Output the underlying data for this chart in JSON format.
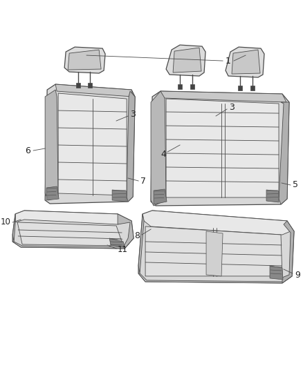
{
  "bg_color": "#ffffff",
  "line_color": "#4a4a4a",
  "figsize": [
    4.38,
    5.33
  ],
  "dpi": 100,
  "seat_fill": "#e8e8e8",
  "seat_edge": "#d0d0d0",
  "seat_dark": "#c8c8c8",
  "seat_mid": "#d8d8d8",
  "seat_light": "#f0f0f0",
  "side_fill": "#c0c0c0",
  "grill_fill": "#888888",
  "headrest_fill": "#d8d8d8"
}
